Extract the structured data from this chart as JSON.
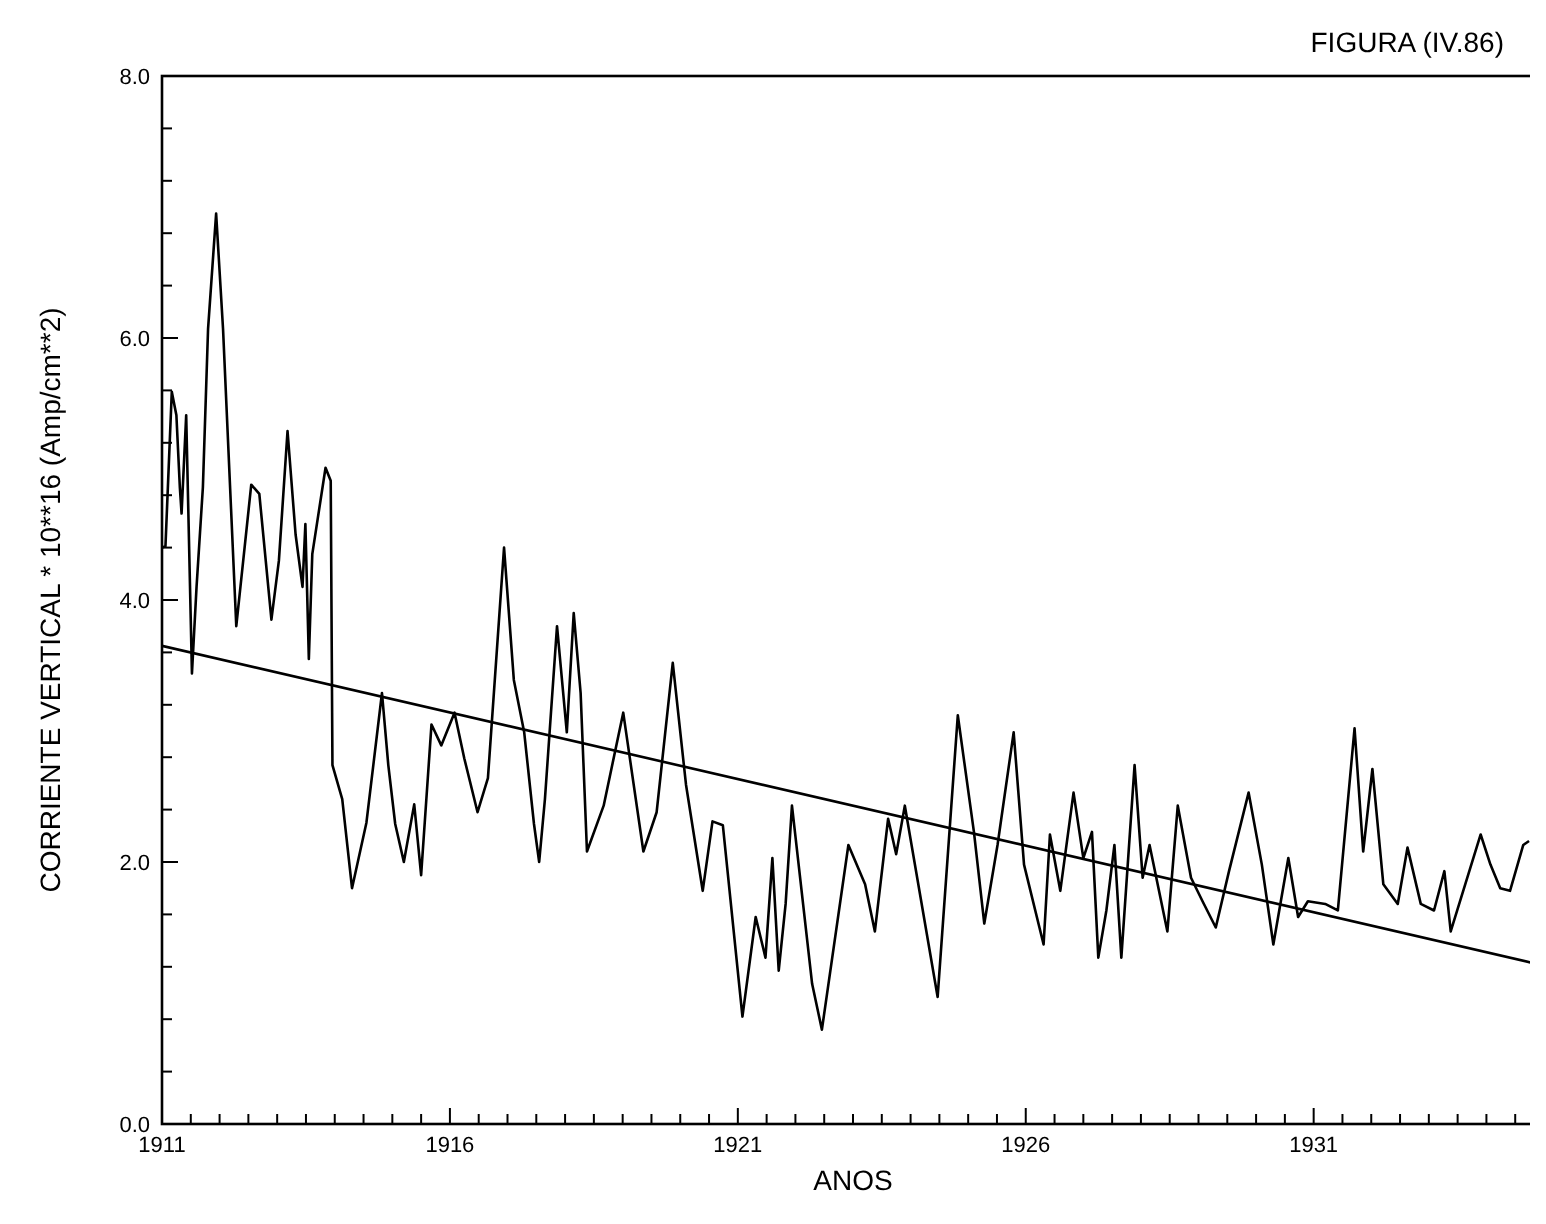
{
  "chart_data": {
    "type": "line",
    "title": "FIGURA (IV.86)",
    "xlabel": "ANOS",
    "ylabel": "CORRIENTE VERTICAL * 10**16 (Amp/cm**2)",
    "xlim": [
      1911,
      1935
    ],
    "ylim": [
      0,
      8
    ],
    "xticks": [
      1911,
      {
        "value": 1911.5,
        "label": null
      },
      {
        "value": 1912,
        "label": null
      },
      {
        "value": 1912.5,
        "label": null
      },
      {
        "value": 1913,
        "label": null
      },
      {
        "value": 1913.5,
        "label": null
      },
      {
        "value": 1914,
        "label": null
      },
      {
        "value": 1914.5,
        "label": null
      },
      {
        "value": 1915,
        "label": null
      },
      {
        "value": 1915.5,
        "label": null
      },
      1916,
      {
        "value": 1916.5,
        "label": null
      },
      {
        "value": 1917,
        "label": null
      },
      {
        "value": 1917.5,
        "label": null
      },
      {
        "value": 1918,
        "label": null
      },
      {
        "value": 1918.5,
        "label": null
      },
      {
        "value": 1919,
        "label": null
      },
      {
        "value": 1919.5,
        "label": null
      },
      {
        "value": 1920,
        "label": null
      },
      {
        "value": 1920.5,
        "label": null
      },
      1921,
      {
        "value": 1921.5,
        "label": null
      },
      {
        "value": 1922,
        "label": null
      },
      {
        "value": 1922.5,
        "label": null
      },
      {
        "value": 1923,
        "label": null
      },
      {
        "value": 1923.5,
        "label": null
      },
      {
        "value": 1924,
        "label": null
      },
      {
        "value": 1924.5,
        "label": null
      },
      {
        "value": 1925,
        "label": null
      },
      {
        "value": 1925.5,
        "label": null
      },
      1926,
      {
        "value": 1926.5,
        "label": null
      },
      {
        "value": 1927,
        "label": null
      },
      {
        "value": 1927.5,
        "label": null
      },
      {
        "value": 1928,
        "label": null
      },
      {
        "value": 1928.5,
        "label": null
      },
      {
        "value": 1929,
        "label": null
      },
      {
        "value": 1929.5,
        "label": null
      },
      {
        "value": 1930,
        "label": null
      },
      {
        "value": 1930.5,
        "label": null
      },
      1931,
      {
        "value": 1931.5,
        "label": null
      },
      {
        "value": 1932,
        "label": null
      },
      {
        "value": 1932.5,
        "label": null
      },
      {
        "value": 1933,
        "label": null
      },
      {
        "value": 1933.5,
        "label": null
      },
      {
        "value": 1934,
        "label": null
      },
      {
        "value": 1934.5,
        "label": null
      }
    ],
    "yticks": [
      {
        "value": 0,
        "label": "0.0"
      },
      {
        "value": 0.4,
        "label": null
      },
      {
        "value": 0.8,
        "label": null
      },
      {
        "value": 1.2,
        "label": null
      },
      {
        "value": 1.6,
        "label": null
      },
      {
        "value": 2,
        "label": "2.0"
      },
      {
        "value": 2.4,
        "label": null
      },
      {
        "value": 2.8,
        "label": null
      },
      {
        "value": 3.2,
        "label": null
      },
      {
        "value": 3.6,
        "label": null
      },
      {
        "value": 4,
        "label": "4.0"
      },
      {
        "value": 4.4,
        "label": null
      },
      {
        "value": 4.8,
        "label": null
      },
      {
        "value": 5.2,
        "label": null
      },
      {
        "value": 5.6,
        "label": null
      },
      {
        "value": 6,
        "label": "6.0"
      },
      {
        "value": 6.4,
        "label": null
      },
      {
        "value": 6.8,
        "label": null
      },
      {
        "value": 7.2,
        "label": null
      },
      {
        "value": 7.6,
        "label": null
      },
      {
        "value": 8,
        "label": "8.0"
      }
    ],
    "grid": false,
    "marker": "none",
    "line_style": "solid",
    "series": [
      {
        "color": "#000000",
        "x": [
          1911.0,
          1911.06,
          1911.17,
          1911.25,
          1911.31,
          1911.34,
          1911.42,
          1911.52,
          1911.6,
          1911.71,
          1911.8,
          1911.94,
          1912.06,
          1912.29,
          1912.55,
          1912.69,
          1912.9,
          1913.03,
          1913.18,
          1913.32,
          1913.44,
          1913.49,
          1913.55,
          1913.61,
          1913.84,
          1913.93,
          1913.96,
          1914.13,
          1914.3,
          1914.55,
          1914.82,
          1914.93,
          1915.05,
          1915.2,
          1915.38,
          1915.5,
          1915.68,
          1915.85,
          1916.08,
          1916.25,
          1916.48,
          1916.66,
          1916.94,
          1917.11,
          1917.29,
          1917.46,
          1917.55,
          1917.65,
          1917.86,
          1918.03,
          1918.15,
          1918.27,
          1918.38,
          1918.67,
          1919.01,
          1919.36,
          1919.59,
          1919.87,
          1920.1,
          1920.39,
          1920.56,
          1920.74,
          1921.08,
          1921.31,
          1921.48,
          1921.6,
          1921.71,
          1921.83,
          1921.94,
          1922.29,
          1922.46,
          1922.92,
          1923.21,
          1923.38,
          1923.61,
          1923.75,
          1923.9,
          1924.47,
          1924.82,
          1925.1,
          1925.28,
          1925.51,
          1925.79,
          1925.97,
          1926.31,
          1926.42,
          1926.6,
          1926.83,
          1927.0,
          1927.15,
          1927.26,
          1927.4,
          1927.54,
          1927.66,
          1927.89,
          1928.03,
          1928.15,
          1928.46,
          1928.64,
          1928.87,
          1929.07,
          1929.3,
          1929.53,
          1929.87,
          1930.1,
          1930.3,
          1930.56,
          1930.73,
          1930.9,
          1931.2,
          1931.42,
          1931.71,
          1931.86,
          1932.02,
          1932.21,
          1932.46,
          1932.63,
          1932.86,
          1933.09,
          1933.27,
          1933.38,
          1933.9,
          1934.07,
          1934.24,
          1934.41,
          1934.64,
          1934.74
        ],
        "values": [
          4.4,
          4.41,
          5.59,
          5.41,
          4.86,
          4.66,
          5.41,
          3.44,
          4.1,
          4.86,
          6.07,
          6.95,
          6.07,
          3.8,
          4.88,
          4.81,
          3.85,
          4.3,
          5.29,
          4.5,
          4.1,
          4.58,
          3.55,
          4.35,
          5.01,
          4.91,
          2.74,
          2.48,
          1.8,
          2.3,
          3.29,
          2.74,
          2.29,
          2.0,
          2.44,
          1.9,
          3.05,
          2.89,
          3.14,
          2.79,
          2.38,
          2.64,
          4.4,
          3.39,
          2.99,
          2.29,
          2.0,
          2.48,
          3.8,
          2.99,
          3.9,
          3.29,
          2.08,
          2.43,
          3.14,
          2.08,
          2.38,
          3.52,
          2.59,
          1.78,
          2.31,
          2.28,
          0.82,
          1.58,
          1.27,
          2.03,
          1.17,
          1.68,
          2.43,
          1.07,
          0.72,
          2.13,
          1.83,
          1.47,
          2.33,
          2.06,
          2.43,
          0.97,
          3.12,
          2.23,
          1.53,
          2.13,
          2.99,
          1.98,
          1.37,
          2.21,
          1.78,
          2.53,
          2.03,
          2.23,
          1.27,
          1.63,
          2.13,
          1.27,
          2.74,
          1.88,
          2.13,
          1.47,
          2.43,
          1.88,
          1.7,
          1.5,
          1.93,
          2.53,
          1.98,
          1.37,
          2.03,
          1.58,
          1.7,
          1.68,
          1.63,
          3.02,
          2.08,
          2.71,
          1.83,
          1.68,
          2.11,
          1.68,
          1.63,
          1.93,
          1.47,
          2.21,
          1.98,
          1.8,
          1.78,
          2.13,
          2.16
        ]
      },
      {
        "color": "#000000",
        "x": [
          1911,
          1934.8
        ],
        "values": [
          3.65,
          1.23
        ]
      }
    ]
  }
}
